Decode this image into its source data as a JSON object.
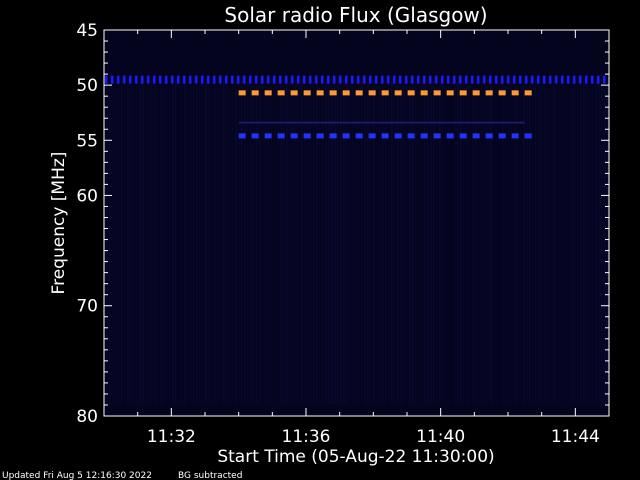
{
  "chart_data": {
    "type": "heatmap",
    "title": "Solar radio Flux (Glasgow)",
    "ylabel": "Frequency [MHz]",
    "xlabel": "Start Time (05-Aug-22 11:30:00)",
    "y_axis": {
      "range": [
        45,
        80
      ],
      "ticks": [
        45,
        50,
        55,
        60,
        70,
        80
      ]
    },
    "x_axis": {
      "range": [
        "11:30:00",
        "11:45:00"
      ],
      "ticks": [
        "11:32",
        "11:36",
        "11:40",
        "11:44"
      ]
    },
    "bands": [
      {
        "frequency_mhz": 49.5,
        "start": "11:30:00",
        "end": "11:45:00",
        "color": "#1a1aff",
        "pattern": "dotted"
      },
      {
        "frequency_mhz": 50.7,
        "start": "11:34:00",
        "end": "11:42:30",
        "color": "#ff9933",
        "pattern": "dashed"
      },
      {
        "frequency_mhz": 53.4,
        "start": "11:34:00",
        "end": "11:42:30",
        "color": "#1a1a66",
        "pattern": "faint"
      },
      {
        "frequency_mhz": 54.6,
        "start": "11:34:00",
        "end": "11:42:30",
        "color": "#2233ff",
        "pattern": "dashed"
      }
    ],
    "background_color": "#04041e"
  },
  "footer": {
    "updated": "Updated Fri Aug  5 12:16:30 2022",
    "note": "BG subtracted"
  }
}
